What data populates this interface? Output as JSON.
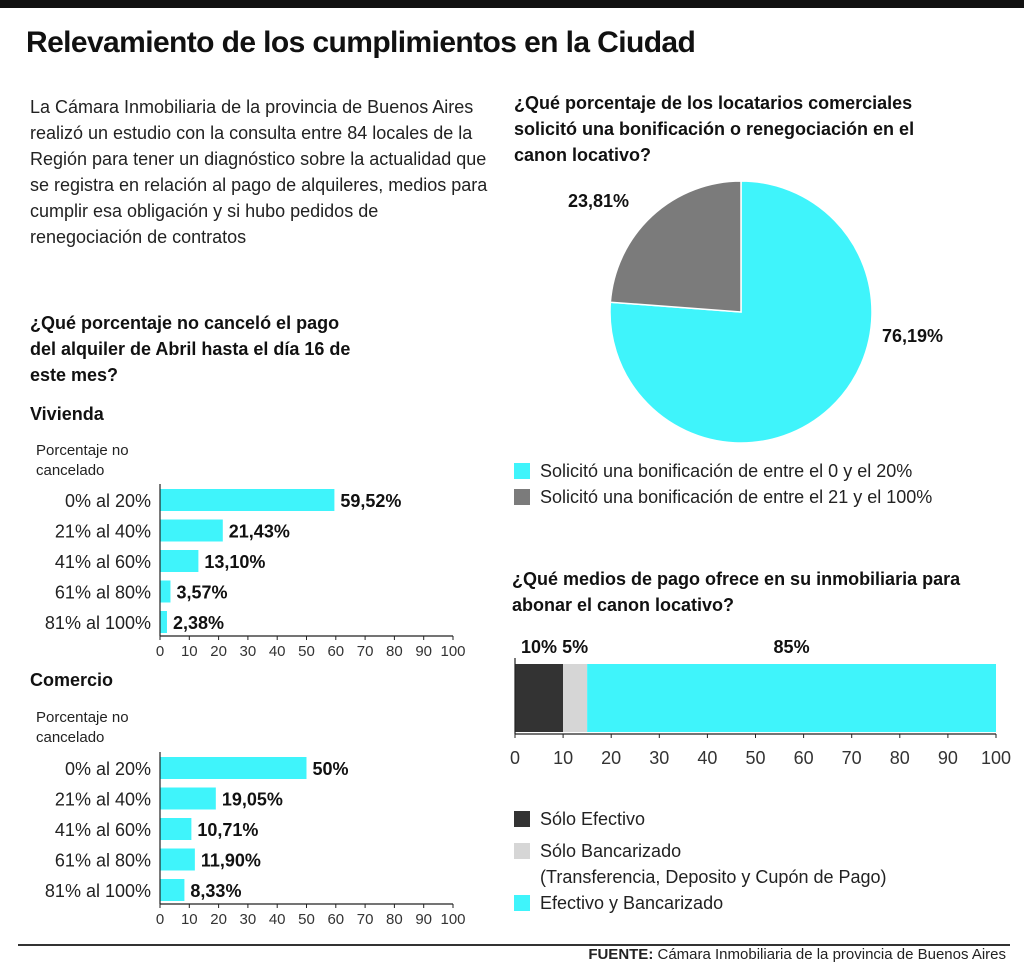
{
  "title": "Relevamiento de los cumplimientos en la Ciudad",
  "intro": "La Cámara Inmobiliaria de la provincia de Buenos Aires realizó un estudio con la consulta entre 84 locales de la Región para tener un diagnóstico sobre la actualidad que se registra en relación al pago de alquileres, medios para cumplir esa obligación y si hubo pedidos de renegociación de contratos",
  "colors": {
    "cyan": "#3ff4fb",
    "gray": "#7b7b7b",
    "dark": "#333333",
    "light": "#d6d6d6"
  },
  "chart_data": [
    {
      "type": "bar",
      "orientation": "horizontal",
      "title": "¿Qué porcentaje no canceló el pago del alquiler de Abril hasta el día 16 de este mes?",
      "subtitle": "Vivienda",
      "ylabel": "Porcentaje no cancelado",
      "categories": [
        "0% al 20%",
        "21% al 40%",
        "41% al 60%",
        "61% al 80%",
        "81% al 100%"
      ],
      "values": [
        59.52,
        21.43,
        13.1,
        3.57,
        2.38
      ],
      "value_labels": [
        "59,52%",
        "21,43%",
        "13,10%",
        "3,57%",
        "2,38%"
      ],
      "xlim": [
        0,
        100
      ],
      "xticks": [
        "0",
        "10",
        "20",
        "30",
        "40",
        "50",
        "60",
        "70",
        "80",
        "90",
        "100"
      ]
    },
    {
      "type": "bar",
      "orientation": "horizontal",
      "subtitle": "Comercio",
      "ylabel": "Porcentaje no cancelado",
      "categories": [
        "0% al 20%",
        "21% al 40%",
        "41% al 60%",
        "61% al 80%",
        "81% al 100%"
      ],
      "values": [
        50,
        19.05,
        10.71,
        11.9,
        8.33
      ],
      "value_labels": [
        "50%",
        "19,05%",
        "10,71%",
        "11,90%",
        "8,33%"
      ],
      "xlim": [
        0,
        100
      ],
      "xticks": [
        "0",
        "10",
        "20",
        "30",
        "40",
        "50",
        "60",
        "70",
        "80",
        "90",
        "100"
      ]
    },
    {
      "type": "pie",
      "title": "¿Qué porcentaje de los locatarios comerciales solicitó una bonificación o renegociación en el canon locativo?",
      "labels": [
        "Solicitó una bonificación de entre el 0 y el 20%",
        "Solicitó una bonificación de entre el 21 y el 100%"
      ],
      "values": [
        76.19,
        23.81
      ],
      "value_labels": [
        "76,19%",
        "23,81%"
      ],
      "legend": "bottom"
    },
    {
      "type": "bar",
      "orientation": "horizontal-stacked",
      "title": "¿Qué medios de pago ofrece en su inmobiliaria para abonar el canon locativo?",
      "series": [
        {
          "name": "Sólo Efectivo",
          "value": 10,
          "label": "10%"
        },
        {
          "name": "Sólo Bancarizado",
          "note": "(Transferencia, Deposito y Cupón de Pago)",
          "value": 5,
          "label": "5%"
        },
        {
          "name": "Efectivo y Bancarizado",
          "value": 85,
          "label": "85%"
        }
      ],
      "xlim": [
        0,
        100
      ],
      "xticks": [
        "0",
        "10",
        "20",
        "30",
        "40",
        "50",
        "60",
        "70",
        "80",
        "90",
        "100"
      ],
      "legend": "bottom"
    }
  ],
  "footer": {
    "label": "FUENTE:",
    "text": "Cámara Inmobiliaria de la provincia de Buenos Aires"
  }
}
